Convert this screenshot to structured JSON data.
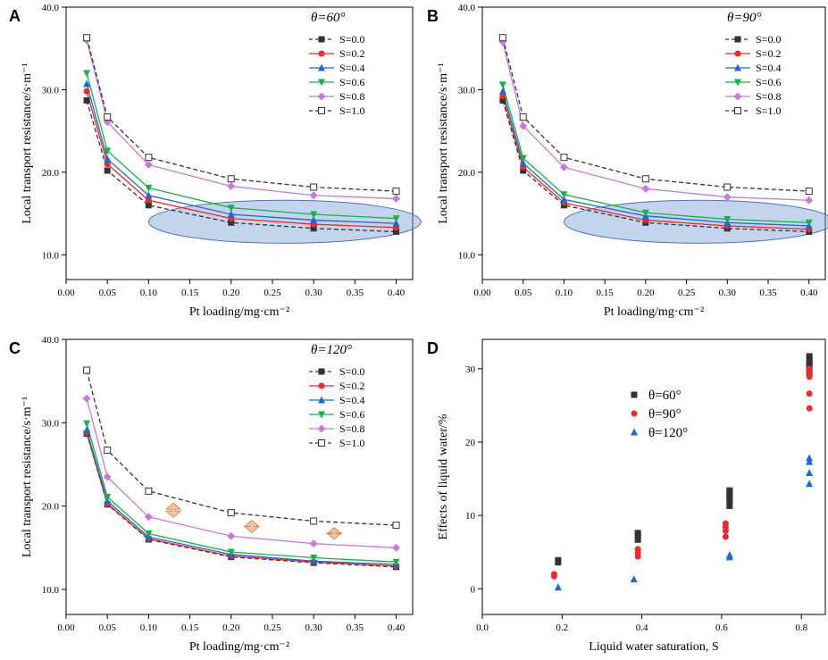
{
  "styles": {
    "S=0.0": {
      "color": "#333333",
      "marker": "square",
      "dash": true
    },
    "S=0.2": {
      "color": "#ee2a2a",
      "marker": "circle",
      "dash": false
    },
    "S=0.4": {
      "color": "#1f66d6",
      "marker": "triangle-up",
      "dash": false
    },
    "S=0.6": {
      "color": "#18b04a",
      "marker": "triangle-down",
      "dash": false
    },
    "S=0.8": {
      "color": "#c77ad9",
      "marker": "diamond",
      "dash": false
    },
    "S=1.0": {
      "color": "#333333",
      "marker": "square-open",
      "dash": true
    }
  },
  "chart_data": [
    {
      "panel": "A",
      "type": "line",
      "legend_title": "θ=60°",
      "xlabel": "Pt loading/mg·cm⁻²",
      "ylabel": "Local transport resistance/s·m⁻¹",
      "xlim": [
        0.0,
        0.42
      ],
      "ylim": [
        7.0,
        40.0
      ],
      "xticks": [
        0.0,
        0.05,
        0.1,
        0.15,
        0.2,
        0.25,
        0.3,
        0.35,
        0.4
      ],
      "xtick_labels": [
        "0.00",
        "0.05",
        "0.10",
        "0.15",
        "0.20",
        "0.25",
        "0.30",
        "0.35",
        "0.40"
      ],
      "yticks": [
        10,
        20,
        30,
        40
      ],
      "ytick_labels": [
        "10.0",
        "20.0",
        "30.0",
        "40.0"
      ],
      "x": [
        0.025,
        0.05,
        0.1,
        0.2,
        0.3,
        0.4
      ],
      "series": [
        {
          "name": "S=0.0",
          "values": [
            28.7,
            20.2,
            16.0,
            13.9,
            13.2,
            12.8
          ]
        },
        {
          "name": "S=0.2",
          "values": [
            29.8,
            21.0,
            16.6,
            14.4,
            13.7,
            13.3
          ]
        },
        {
          "name": "S=0.4",
          "values": [
            30.7,
            21.6,
            17.2,
            14.9,
            14.2,
            13.8
          ]
        },
        {
          "name": "S=0.6",
          "values": [
            32.0,
            22.6,
            18.1,
            15.7,
            14.9,
            14.4
          ]
        },
        {
          "name": "S=0.8",
          "values": [
            36.0,
            26.1,
            20.9,
            18.3,
            17.2,
            16.8
          ]
        },
        {
          "name": "S=1.0",
          "values": [
            36.3,
            26.7,
            21.8,
            19.2,
            18.2,
            17.7
          ]
        }
      ],
      "annotation": "ellipse"
    },
    {
      "panel": "B",
      "type": "line",
      "legend_title": "θ=90°",
      "xlabel": "Pt loading/mg·cm⁻²",
      "ylabel": "Local transport resistance/s·m⁻¹",
      "xlim": [
        0.0,
        0.42
      ],
      "ylim": [
        7.0,
        40.0
      ],
      "xticks": [
        0.0,
        0.05,
        0.1,
        0.15,
        0.2,
        0.25,
        0.3,
        0.35,
        0.4
      ],
      "xtick_labels": [
        "0.00",
        "0.05",
        "0.10",
        "0.15",
        "0.20",
        "0.25",
        "0.30",
        "0.35",
        "0.40"
      ],
      "yticks": [
        10,
        20,
        30,
        40
      ],
      "ytick_labels": [
        "10.0",
        "20.0",
        "30.0",
        "40.0"
      ],
      "x": [
        0.025,
        0.05,
        0.1,
        0.2,
        0.3,
        0.4
      ],
      "series": [
        {
          "name": "S=0.0",
          "values": [
            28.7,
            20.2,
            16.0,
            13.9,
            13.2,
            12.8
          ]
        },
        {
          "name": "S=0.2",
          "values": [
            29.2,
            20.6,
            16.3,
            14.2,
            13.5,
            13.1
          ]
        },
        {
          "name": "S=0.4",
          "values": [
            29.8,
            21.1,
            16.7,
            14.7,
            13.9,
            13.5
          ]
        },
        {
          "name": "S=0.6",
          "values": [
            30.6,
            21.7,
            17.3,
            15.1,
            14.3,
            13.9
          ]
        },
        {
          "name": "S=0.8",
          "values": [
            35.8,
            25.6,
            20.6,
            18.0,
            17.0,
            16.6
          ]
        },
        {
          "name": "S=1.0",
          "values": [
            36.3,
            26.7,
            21.8,
            19.2,
            18.2,
            17.7
          ]
        }
      ],
      "annotation": "ellipse"
    },
    {
      "panel": "C",
      "type": "line",
      "legend_title": "θ=120°",
      "xlabel": "Pt loading/mg·cm⁻²",
      "ylabel": "Local transport resistance/s·m⁻¹",
      "xlim": [
        0.0,
        0.42
      ],
      "ylim": [
        7.0,
        40.0
      ],
      "xticks": [
        0.0,
        0.05,
        0.1,
        0.15,
        0.2,
        0.25,
        0.3,
        0.35,
        0.4
      ],
      "xtick_labels": [
        "0.00",
        "0.05",
        "0.10",
        "0.15",
        "0.20",
        "0.25",
        "0.30",
        "0.35",
        "0.40"
      ],
      "yticks": [
        10,
        20,
        30,
        40
      ],
      "ytick_labels": [
        "10.0",
        "20.0",
        "30.0",
        "40.0"
      ],
      "x": [
        0.025,
        0.05,
        0.1,
        0.2,
        0.3,
        0.4
      ],
      "series": [
        {
          "name": "S=0.0",
          "values": [
            28.7,
            20.2,
            16.0,
            13.9,
            13.2,
            12.7
          ]
        },
        {
          "name": "S=0.2",
          "values": [
            28.8,
            20.3,
            16.1,
            14.0,
            13.3,
            12.8
          ]
        },
        {
          "name": "S=0.4",
          "values": [
            29.1,
            20.6,
            16.3,
            14.2,
            13.4,
            13.0
          ]
        },
        {
          "name": "S=0.6",
          "values": [
            29.9,
            21.1,
            16.7,
            14.5,
            13.8,
            13.3
          ]
        },
        {
          "name": "S=0.8",
          "values": [
            32.9,
            23.5,
            18.7,
            16.4,
            15.5,
            15.0
          ]
        },
        {
          "name": "S=1.0",
          "values": [
            36.3,
            26.7,
            21.8,
            19.2,
            18.2,
            17.7
          ]
        }
      ],
      "annotation": "arrows",
      "arrow_x": [
        0.13,
        0.225,
        0.325
      ]
    },
    {
      "panel": "D",
      "type": "scatter",
      "xlabel": "Liquid water saturation, S",
      "ylabel": "Effects of liquid water/%",
      "xlim": [
        0.0,
        0.86
      ],
      "ylim": [
        -3.5,
        34.0
      ],
      "xticks": [
        0.0,
        0.2,
        0.4,
        0.6,
        0.8
      ],
      "xtick_labels": [
        "0.0",
        "0.2",
        "0.4",
        "0.6",
        "0.8"
      ],
      "yticks": [
        0,
        10,
        20,
        30
      ],
      "ytick_labels": [
        "0",
        "10",
        "20",
        "30"
      ],
      "series": [
        {
          "name": "θ=60°",
          "color": "#333333",
          "marker": "square",
          "x": [
            0.19,
            0.19,
            0.39,
            0.39,
            0.39,
            0.62,
            0.62,
            0.62,
            0.62,
            0.62,
            0.62,
            0.82,
            0.82,
            0.82,
            0.82,
            0.82,
            0.82
          ],
          "y": [
            3.6,
            3.9,
            6.7,
            7.2,
            7.6,
            11.3,
            11.9,
            12.3,
            12.7,
            13.1,
            13.4,
            29.5,
            30.1,
            30.6,
            31.0,
            31.4,
            31.7
          ]
        },
        {
          "name": "θ=90°",
          "color": "#ee2a2a",
          "marker": "circle",
          "x": [
            0.18,
            0.18,
            0.39,
            0.39,
            0.39,
            0.61,
            0.61,
            0.61,
            0.61,
            0.82,
            0.82,
            0.82,
            0.82,
            0.82
          ],
          "y": [
            1.7,
            2.0,
            4.4,
            4.9,
            5.4,
            7.1,
            7.9,
            8.4,
            8.9,
            24.6,
            26.6,
            28.9,
            29.6,
            30.0
          ]
        },
        {
          "name": "θ=120°",
          "color": "#1f66d6",
          "marker": "triangle-up",
          "x": [
            0.19,
            0.38,
            0.62,
            0.62,
            0.82,
            0.82,
            0.82,
            0.82
          ],
          "y": [
            0.2,
            1.3,
            4.3,
            4.6,
            14.3,
            15.8,
            17.3,
            17.8
          ]
        }
      ]
    }
  ]
}
